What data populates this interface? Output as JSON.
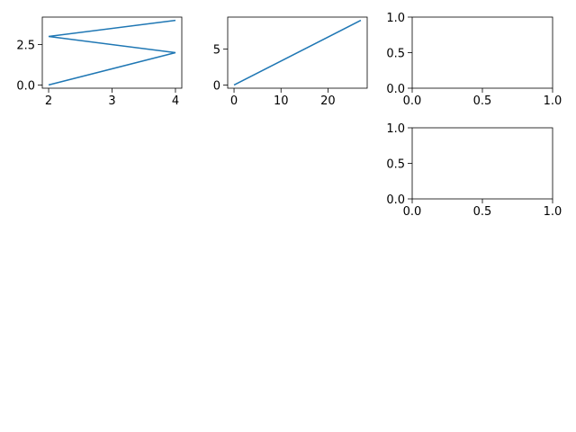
{
  "chart_data": [
    {
      "type": "line",
      "x": [
        2,
        4,
        2,
        4
      ],
      "values": [
        0,
        2,
        3,
        4
      ],
      "color": "#1f77b4",
      "xlim": [
        1.9,
        4.1
      ],
      "ylim": [
        -0.2,
        4.2
      ],
      "xticks": [
        2,
        3,
        4
      ],
      "yticks": [
        {
          "value": 0,
          "label": "0.0"
        },
        2.5
      ]
    },
    {
      "type": "line",
      "x": [
        0,
        27
      ],
      "values": [
        0,
        9
      ],
      "color": "#1f77b4",
      "xlim": [
        -1.35,
        28.35
      ],
      "ylim": [
        -0.45,
        9.45
      ],
      "xticks": [
        0,
        10,
        20
      ],
      "yticks": [
        0,
        5
      ]
    },
    {
      "type": "line",
      "xlim": [
        0,
        1
      ],
      "ylim": [
        0,
        1
      ],
      "xticks": [
        {
          "value": 0,
          "label": "0.0"
        },
        0.5,
        {
          "value": 1,
          "label": "1.0"
        }
      ],
      "yticks": [
        {
          "value": 0,
          "label": "0.0"
        },
        0.5,
        {
          "value": 1,
          "label": "1.0"
        }
      ]
    },
    {
      "type": "line",
      "xlim": [
        0,
        1
      ],
      "ylim": [
        0,
        1
      ],
      "xticks": [
        {
          "value": 0,
          "label": "0.0"
        },
        0.5,
        {
          "value": 1,
          "label": "1.0"
        }
      ],
      "yticks": [
        {
          "value": 0,
          "label": "0.0"
        },
        0.5,
        {
          "value": 1,
          "label": "1.0"
        }
      ]
    }
  ]
}
